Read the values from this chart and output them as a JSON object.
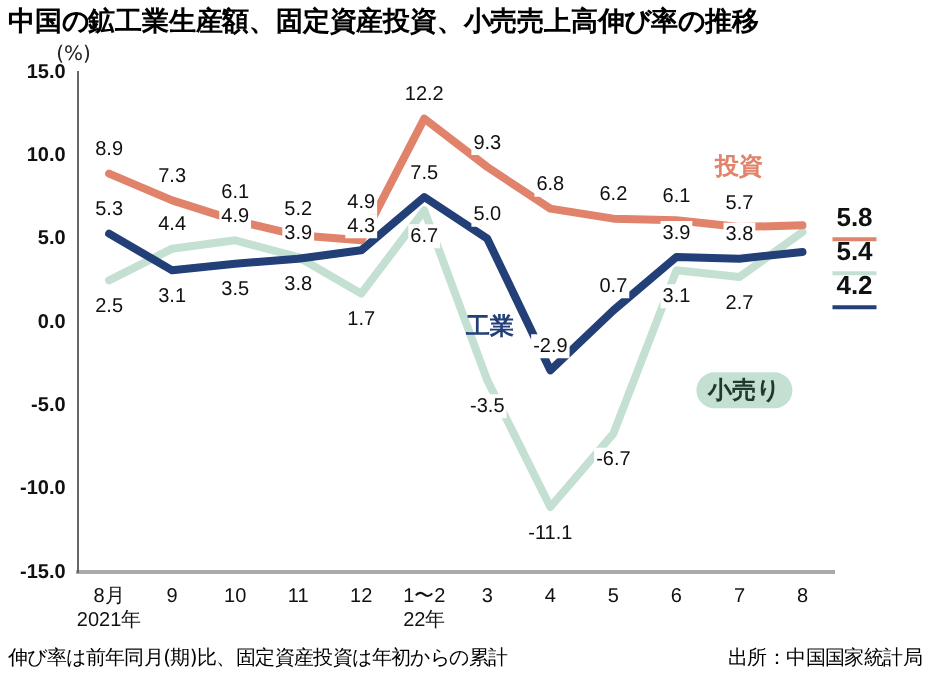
{
  "chart_data": {
    "type": "line",
    "title": "中国の鉱工業生産額、固定資産投資、小売売上高伸び率の推移",
    "ylabel": "(%)",
    "categories": [
      "8月\n2021年",
      "9",
      "10",
      "11",
      "12",
      "1〜2\n22年",
      "3",
      "4",
      "5",
      "6",
      "7",
      "8"
    ],
    "series": [
      {
        "name": "投資",
        "color": "#e0836a",
        "values": [
          8.9,
          7.3,
          6.1,
          5.2,
          4.9,
          12.2,
          9.3,
          6.8,
          6.2,
          6.1,
          5.7,
          5.8
        ]
      },
      {
        "name": "工業",
        "color": "#233f78",
        "values": [
          5.3,
          3.1,
          3.5,
          3.8,
          4.3,
          7.5,
          5.0,
          -2.9,
          0.7,
          3.9,
          3.8,
          4.2
        ],
        "value_labels": [
          "5.3",
          "3.1",
          "3.5",
          "3.8",
          "4.3",
          "7.5",
          "5.0",
          "-2.9",
          "0.7",
          "3.9",
          "3.8",
          "4.2"
        ]
      },
      {
        "name": "小売り",
        "color": "#c4e0d3",
        "values": [
          2.5,
          4.4,
          4.9,
          3.9,
          1.7,
          6.7,
          -3.5,
          -11.1,
          -6.7,
          3.1,
          2.7,
          5.4
        ]
      }
    ],
    "ylim": [
      -15,
      15
    ],
    "yticks": [
      {
        "value": -15,
        "label": "-15.0"
      },
      {
        "value": -10,
        "label": "-10.0"
      },
      {
        "value": -5,
        "label": "-5.0"
      },
      {
        "value": 0,
        "label": "0.0"
      },
      {
        "value": 5,
        "label": "5.0"
      },
      {
        "value": 10,
        "label": "10.0"
      },
      {
        "value": 15,
        "label": "15.0"
      }
    ],
    "grid": false,
    "legend": false,
    "data_labels": true,
    "annotations": [
      "伸び率は前年同月(期)比、固定資産投資は年初からの累計",
      "出所：中国国家統計局"
    ]
  }
}
